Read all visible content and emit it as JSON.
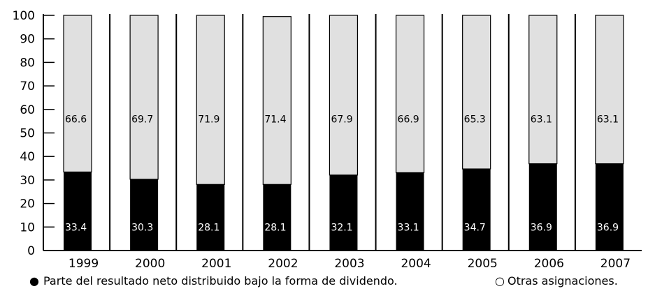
{
  "chart_data": {
    "type": "bar",
    "stacked": true,
    "categories": [
      "1999",
      "2000",
      "2001",
      "2002",
      "2003",
      "2004",
      "2005",
      "2006",
      "2007"
    ],
    "series": [
      {
        "name": "Parte del resultado neto distribuido bajo la forma de dividendo.",
        "values": [
          33.4,
          30.3,
          28.1,
          28.1,
          32.1,
          33.1,
          34.7,
          36.9,
          36.9
        ],
        "labels": [
          "33.4",
          "30.3",
          "28.1",
          "28.1",
          "32.1",
          "33.1",
          "34.7",
          "36.9",
          "36.9"
        ],
        "color": "#000000",
        "label_color": "#ffffff",
        "marker": "●"
      },
      {
        "name": "Otras asignaciones.",
        "values": [
          66.6,
          69.7,
          71.9,
          71.4,
          67.9,
          66.9,
          65.3,
          63.1,
          63.1
        ],
        "labels": [
          "66.6",
          "69.7",
          "71.9",
          "71.4",
          "67.9",
          "66.9",
          "65.3",
          "63.1",
          "63.1"
        ],
        "color": "#e0e0e0",
        "label_color": "#000000",
        "marker": "○"
      }
    ],
    "ylim": [
      0,
      100
    ],
    "yticks": [
      "0",
      "10",
      "20",
      "30",
      "40",
      "50",
      "60",
      "70",
      "80",
      "90",
      "100"
    ],
    "legend_position": "bottom",
    "grid": false
  }
}
